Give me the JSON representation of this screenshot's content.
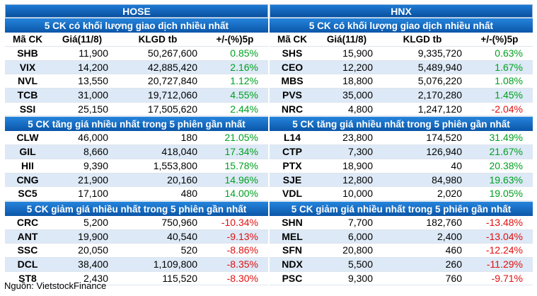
{
  "exchanges": [
    {
      "name": "HOSE",
      "columns": [
        "Mã CK",
        "Giá(11/8)",
        "KLGD tb",
        "+/-(%)5p"
      ],
      "sections": [
        {
          "title": "5 CK có khối lượng giao dịch nhiều nhất",
          "has_columns": true,
          "rows": [
            [
              "SHB",
              "11,900",
              "50,267,600",
              "0.85%",
              "up"
            ],
            [
              "VIX",
              "14,200",
              "42,885,420",
              "2.16%",
              "up"
            ],
            [
              "NVL",
              "13,550",
              "20,727,840",
              "1.12%",
              "up"
            ],
            [
              "TCB",
              "31,000",
              "19,712,060",
              "4.55%",
              "up"
            ],
            [
              "SSI",
              "25,150",
              "17,505,620",
              "2.44%",
              "up"
            ]
          ]
        },
        {
          "title": "5 CK tăng giá nhiều nhất trong 5 phiên gần nhất",
          "has_columns": false,
          "rows": [
            [
              "CLW",
              "46,000",
              "180",
              "21.05%",
              "up"
            ],
            [
              "GIL",
              "8,660",
              "418,040",
              "17.34%",
              "up"
            ],
            [
              "HII",
              "9,390",
              "1,553,800",
              "15.78%",
              "up"
            ],
            [
              "CNG",
              "21,900",
              "20,160",
              "14.96%",
              "up"
            ],
            [
              "SC5",
              "17,100",
              "480",
              "14.00%",
              "up"
            ]
          ]
        },
        {
          "title": "5 CK giảm giá nhiều nhất trong 5 phiên gần nhất",
          "has_columns": false,
          "rows": [
            [
              "CRC",
              "5,200",
              "750,960",
              "-10.34%",
              "down"
            ],
            [
              "ANT",
              "19,900",
              "40,540",
              "-9.13%",
              "down"
            ],
            [
              "SSC",
              "20,050",
              "520",
              "-8.86%",
              "down"
            ],
            [
              "DCL",
              "38,400",
              "1,109,800",
              "-8.35%",
              "down"
            ],
            [
              "ST8",
              "2,430",
              "115,520",
              "-8.30%",
              "down"
            ]
          ]
        }
      ]
    },
    {
      "name": "HNX",
      "columns": [
        "Mã CK",
        "Giá(11/8)",
        "KLGD tb",
        "+/-(%)5p"
      ],
      "sections": [
        {
          "title": "5 CK có khối lượng giao dịch nhiều nhất",
          "has_columns": true,
          "rows": [
            [
              "SHS",
              "15,900",
              "9,335,720",
              "0.63%",
              "up"
            ],
            [
              "CEO",
              "12,200",
              "5,489,940",
              "1.67%",
              "up"
            ],
            [
              "MBS",
              "18,800",
              "5,076,220",
              "1.08%",
              "up"
            ],
            [
              "PVS",
              "35,000",
              "2,170,280",
              "1.45%",
              "up"
            ],
            [
              "NRC",
              "4,800",
              "1,247,120",
              "-2.04%",
              "down"
            ]
          ]
        },
        {
          "title": "5 CK tăng giá nhiều nhất trong 5 phiên gần nhất",
          "has_columns": false,
          "rows": [
            [
              "L14",
              "23,800",
              "174,520",
              "31.49%",
              "up"
            ],
            [
              "CTP",
              "7,300",
              "126,940",
              "21.67%",
              "up"
            ],
            [
              "PTX",
              "18,900",
              "40",
              "20.38%",
              "up"
            ],
            [
              "SJE",
              "12,800",
              "84,980",
              "19.63%",
              "up"
            ],
            [
              "VDL",
              "10,000",
              "2,020",
              "19.05%",
              "up"
            ]
          ]
        },
        {
          "title": "5 CK giảm giá nhiều nhất trong 5 phiên gần nhất",
          "has_columns": false,
          "rows": [
            [
              "SHN",
              "7,700",
              "182,760",
              "-13.48%",
              "down"
            ],
            [
              "MEL",
              "6,000",
              "2,400",
              "-13.04%",
              "down"
            ],
            [
              "SFN",
              "20,800",
              "460",
              "-12.24%",
              "down"
            ],
            [
              "NDX",
              "5,500",
              "260",
              "-11.29%",
              "down"
            ],
            [
              "PSC",
              "9,300",
              "760",
              "-9.71%",
              "down"
            ]
          ]
        }
      ]
    }
  ],
  "source": "Nguồn: VietstockFinance",
  "colors": {
    "up": "#00a020",
    "down": "#e01010",
    "header": "#0b56a8"
  }
}
